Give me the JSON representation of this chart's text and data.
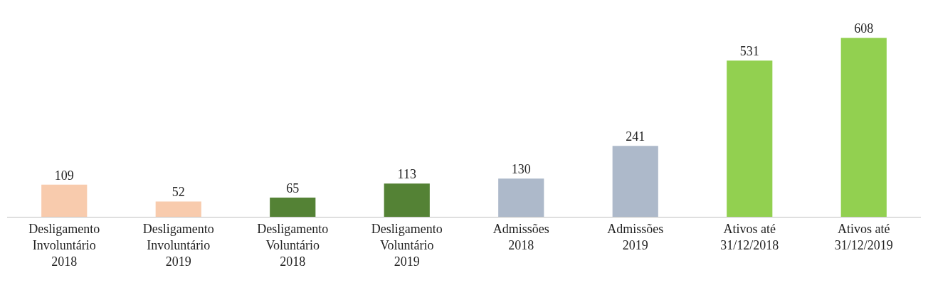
{
  "chart_data": {
    "type": "bar",
    "categories": [
      "Desligamento\nInvoluntário\n2018",
      "Desligamento\nInvoluntário\n2019",
      "Desligamento\nVoluntário\n2018",
      "Desligamento\nVoluntário\n2019",
      "Admissões\n2018",
      "Admissões\n2019",
      "Ativos até\n31/12/2018",
      "Ativos até\n31/12/2019"
    ],
    "values": [
      109,
      52,
      65,
      113,
      130,
      241,
      531,
      608
    ],
    "colors": [
      "#f8cbad",
      "#f8cbad",
      "#548235",
      "#548235",
      "#adb9ca",
      "#adb9ca",
      "#92d050",
      "#92d050"
    ],
    "data_labels": true
  }
}
